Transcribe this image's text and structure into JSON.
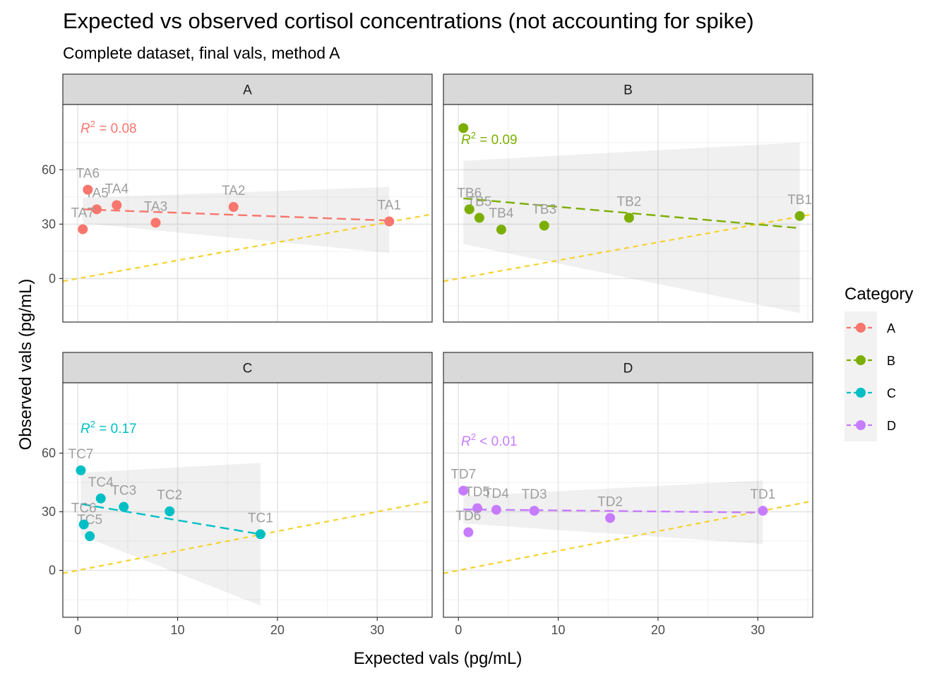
{
  "chart_data": {
    "type": "scatter",
    "title": "Expected vs observed cortisol concentrations (not accounting for spike)",
    "subtitle": "Complete dataset, final vals, method A",
    "xlabel": "Expected vals (pg/mL)",
    "ylabel": "Observed vals (pg/mL)",
    "xlim": [
      -1.5,
      35.5
    ],
    "ylim": [
      -24,
      96
    ],
    "x_ticks": [
      0,
      10,
      20,
      30
    ],
    "y_ticks": [
      0,
      30,
      60
    ],
    "grid": true,
    "legend": {
      "title": "Category",
      "position": "right",
      "entries": [
        "A",
        "B",
        "C",
        "D"
      ]
    },
    "reference_line": {
      "slope": 1,
      "intercept": 0,
      "color": "#F5D229",
      "style": "dashed"
    },
    "panels": [
      {
        "facet": "A",
        "color": "#F8766D",
        "r2_prefix": "R",
        "r2_sup": "2",
        "r2_text": " = 0.08",
        "fit": {
          "x": [
            0.5,
            31.2
          ],
          "y": [
            38.2,
            32.0
          ]
        },
        "ci": {
          "upper": [
            44.5,
            50.5
          ],
          "lower": [
            30.5,
            14.2
          ]
        },
        "points": [
          {
            "label": "TA1",
            "x": 31.2,
            "y": 31.5
          },
          {
            "label": "TA2",
            "x": 15.6,
            "y": 39.5
          },
          {
            "label": "TA3",
            "x": 7.8,
            "y": 30.8
          },
          {
            "label": "TA4",
            "x": 3.9,
            "y": 40.5
          },
          {
            "label": "TA5",
            "x": 1.9,
            "y": 38.2
          },
          {
            "label": "TA6",
            "x": 1.0,
            "y": 49.0
          },
          {
            "label": "TA7",
            "x": 0.5,
            "y": 27.2
          }
        ]
      },
      {
        "facet": "B",
        "color": "#7CAE00",
        "r2_prefix": "R",
        "r2_sup": "2",
        "r2_text": " = 0.09",
        "fit": {
          "x": [
            0.5,
            34.2
          ],
          "y": [
            44.2,
            27.8
          ]
        },
        "ci": {
          "upper": [
            65.0,
            75.0
          ],
          "lower": [
            19.0,
            -19.0
          ]
        },
        "points": [
          {
            "label": "TB1",
            "x": 34.2,
            "y": 34.5
          },
          {
            "label": "TB2",
            "x": 17.1,
            "y": 33.5
          },
          {
            "label": "TB3",
            "x": 8.6,
            "y": 29.2
          },
          {
            "label": "TB4",
            "x": 4.3,
            "y": 27.0
          },
          {
            "label": "TB5",
            "x": 2.1,
            "y": 33.5
          },
          {
            "label": "TB6",
            "x": 1.1,
            "y": 38.2
          },
          {
            "label": "",
            "x": 0.5,
            "y": 83.0
          }
        ]
      },
      {
        "facet": "C",
        "color": "#00BFC4",
        "r2_prefix": "R",
        "r2_sup": "2",
        "r2_text": " = 0.17",
        "fit": {
          "x": [
            0.3,
            18.3
          ],
          "y": [
            34.0,
            18.5
          ]
        },
        "ci": {
          "upper": [
            50.0,
            55.0
          ],
          "lower": [
            18.0,
            -18.0
          ]
        },
        "points": [
          {
            "label": "TC1",
            "x": 18.3,
            "y": 18.5
          },
          {
            "label": "TC2",
            "x": 9.2,
            "y": 30.2
          },
          {
            "label": "TC3",
            "x": 4.6,
            "y": 32.5
          },
          {
            "label": "TC4",
            "x": 2.3,
            "y": 36.8
          },
          {
            "label": "TC5",
            "x": 1.2,
            "y": 17.5
          },
          {
            "label": "TC6",
            "x": 0.6,
            "y": 23.5
          },
          {
            "label": "TC7",
            "x": 0.3,
            "y": 51.2
          }
        ]
      },
      {
        "facet": "D",
        "color": "#C77CFF",
        "r2_prefix": "R",
        "r2_sup": "2",
        "r2_text": " < 0.01",
        "fit": {
          "x": [
            0.5,
            30.5
          ],
          "y": [
            31.2,
            29.6
          ]
        },
        "ci": {
          "upper": [
            38.0,
            46.0
          ],
          "lower": [
            24.0,
            13.5
          ]
        },
        "points": [
          {
            "label": "TD1",
            "x": 30.5,
            "y": 30.5
          },
          {
            "label": "TD2",
            "x": 15.2,
            "y": 26.8
          },
          {
            "label": "TD3",
            "x": 7.6,
            "y": 30.5
          },
          {
            "label": "TD4",
            "x": 3.8,
            "y": 31.0
          },
          {
            "label": "TD5",
            "x": 1.9,
            "y": 31.8
          },
          {
            "label": "TD6",
            "x": 1.0,
            "y": 19.5
          },
          {
            "label": "TD7",
            "x": 0.5,
            "y": 40.8
          }
        ]
      }
    ]
  }
}
